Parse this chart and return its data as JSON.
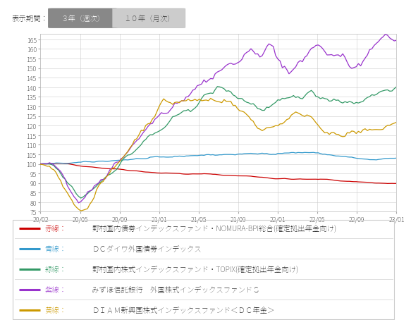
{
  "header_label": "表示期間：",
  "btn1": "３年（週次）",
  "btn2": "１０年（月次）",
  "x_labels": [
    "20/02",
    "20/05",
    "20/09",
    "21/01",
    "21/05",
    "21/09",
    "22/01",
    "22/05",
    "22/09",
    "23/01"
  ],
  "ylim": [
    75,
    168
  ],
  "yticks": [
    75,
    80,
    85,
    90,
    95,
    100,
    105,
    110,
    115,
    120,
    125,
    130,
    135,
    140,
    145,
    150,
    155,
    160,
    165
  ],
  "colors": {
    "red": "#cc0000",
    "blue": "#3399cc",
    "green": "#339966",
    "purple": "#9933cc",
    "gold": "#cc9900"
  },
  "legend": [
    {
      "color": "#cc0000",
      "label_jp": "赤線",
      "name": "野村国内債券インデックスファンド・NOMURA-BPI総合(確定拠出年金向け)"
    },
    {
      "color": "#3399cc",
      "label_jp": "青線",
      "name": "ＤＣダイワ外国債券インデックス"
    },
    {
      "color": "#339966",
      "label_jp": "緑線",
      "name": "野村国内株式インデックスファンド・TOPIX(確定拠出年金向け)"
    },
    {
      "color": "#9933cc",
      "label_jp": "紫線",
      "name": "みずほ信託銀行　外国株式インデックスファンドＳ"
    },
    {
      "color": "#cc9900",
      "label_jp": "黄線",
      "name": "ＤＩＡＭ新興国株式インデックスファンド＜ＤＣ年金＞"
    }
  ],
  "bg_color": "#ffffff",
  "grid_color": "#cccccc",
  "plot_bg_color": "#ffffff"
}
